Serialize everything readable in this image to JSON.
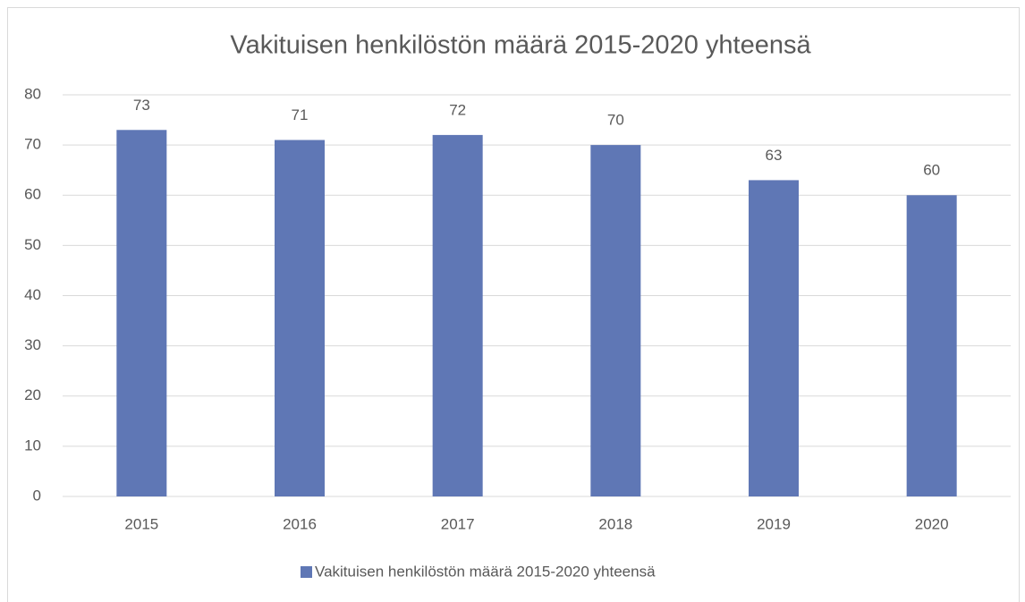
{
  "chart_data": {
    "type": "bar",
    "title": "Vakituisen henkilöstön määrä 2015-2020 yhteensä",
    "categories": [
      "2015",
      "2016",
      "2017",
      "2018",
      "2019",
      "2020"
    ],
    "series": [
      {
        "name": "Vakituisen henkilöstön määrä 2015-2020 yhteensä",
        "color": "#5f77b5",
        "values": [
          73,
          71,
          72,
          70,
          63,
          60
        ]
      }
    ],
    "ylim": [
      0,
      80
    ],
    "yticks": [
      0,
      10,
      20,
      30,
      40,
      50,
      60,
      70,
      80
    ],
    "grid": true,
    "legend": "bottom"
  }
}
